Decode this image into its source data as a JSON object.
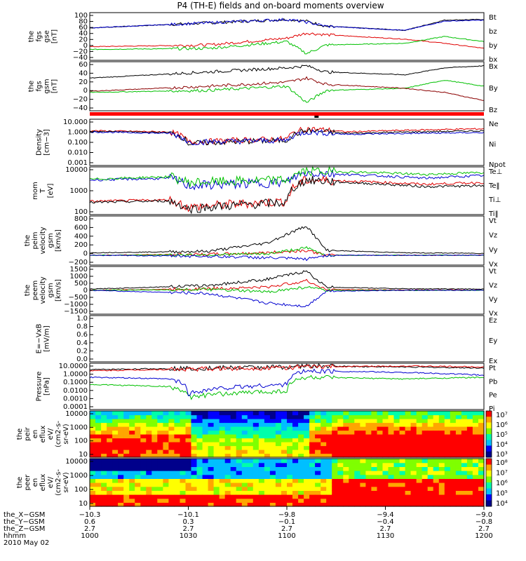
{
  "title": "P4 (TH-E) fields and on-board moments overview",
  "colors": {
    "black": "#000000",
    "red": "#e00000",
    "green": "#00c000",
    "blue": "#0000d0"
  },
  "chart_data": [
    {
      "type": "line",
      "ylabel": [
        "the",
        "fgs",
        "gse",
        "[nT]"
      ],
      "ylim": [
        -40,
        100
      ],
      "ytick_labels": [
        "100",
        "80",
        "60",
        "40",
        "20",
        "0",
        "−20",
        "−40"
      ],
      "legend": [
        {
          "name": "Bt",
          "color": "#000000"
        },
        {
          "name": "bz",
          "color": "#e00000"
        },
        {
          "name": "by",
          "color": "#00c000"
        },
        {
          "name": "bx",
          "color": "#0000d0"
        }
      ],
      "series": [
        {
          "name": "Bt",
          "color": "#000000",
          "t": [
            0,
            0.3,
            0.5,
            0.55,
            0.6,
            0.8,
            0.9,
            1
          ],
          "y": [
            55,
            70,
            80,
            75,
            60,
            48,
            78,
            80
          ]
        },
        {
          "name": "bz",
          "color": "#e00000",
          "t": [
            0,
            0.3,
            0.5,
            0.55,
            0.6,
            0.8,
            0.9,
            1
          ],
          "y": [
            0,
            5,
            25,
            40,
            35,
            22,
            10,
            -5
          ]
        },
        {
          "name": "by",
          "color": "#00c000",
          "t": [
            0,
            0.3,
            0.5,
            0.55,
            0.6,
            0.8,
            0.9,
            1
          ],
          "y": [
            -8,
            -5,
            15,
            -20,
            5,
            10,
            30,
            15
          ]
        },
        {
          "name": "bx",
          "color": "#0000d0",
          "t": [
            0,
            0.3,
            0.5,
            0.55,
            0.6,
            0.8,
            0.9,
            1
          ],
          "y": [
            55,
            70,
            80,
            72,
            60,
            48,
            75,
            78
          ]
        }
      ]
    },
    {
      "type": "line",
      "ylabel": [
        "the",
        "fgs",
        "gsm",
        "[nT]"
      ],
      "ylim": [
        -50,
        70
      ],
      "ytick_labels": [
        "60",
        "40",
        "20",
        "0",
        "−20",
        "−40"
      ],
      "legend": [
        {
          "name": "Bx",
          "color": "#000000"
        },
        {
          "name": "By",
          "color": "#00c000"
        },
        {
          "name": "Bz",
          "color": "#8b0000"
        }
      ],
      "series": [
        {
          "name": "Bx",
          "color": "#000000",
          "t": [
            0,
            0.3,
            0.5,
            0.55,
            0.6,
            0.8,
            0.9,
            1
          ],
          "y": [
            30,
            45,
            55,
            60,
            45,
            38,
            55,
            60
          ]
        },
        {
          "name": "By",
          "color": "#00c000",
          "t": [
            0,
            0.3,
            0.5,
            0.55,
            0.6,
            0.8,
            0.9,
            1
          ],
          "y": [
            -5,
            0,
            10,
            -30,
            0,
            5,
            25,
            10
          ]
        },
        {
          "name": "Bz",
          "color": "#8b0000",
          "t": [
            0,
            0.3,
            0.5,
            0.55,
            0.6,
            0.8,
            0.9,
            1
          ],
          "y": [
            -2,
            10,
            20,
            30,
            15,
            5,
            -5,
            -25
          ]
        }
      ]
    },
    {
      "type": "line",
      "ylabel": [
        "Density",
        "[cm−3]"
      ],
      "ylim": [
        0.001,
        10
      ],
      "log": true,
      "ytick_labels": [
        "10.000",
        "1.000",
        "0.100",
        "0.010",
        "0.001"
      ],
      "legend": [
        {
          "name": "Ne",
          "color": "#e00000"
        },
        {
          "name": "Ni",
          "color": "#000000"
        },
        {
          "name": "Npot",
          "color": "#0000d0"
        }
      ],
      "series": [
        {
          "name": "Ne",
          "color": "#e00000",
          "t": [
            0,
            0.2,
            0.25,
            0.5,
            0.55,
            0.65,
            1
          ],
          "y": [
            1,
            0.8,
            0.1,
            0.2,
            1.5,
            0.8,
            1.5
          ]
        },
        {
          "name": "Ni",
          "color": "#000000",
          "t": [
            0,
            0.2,
            0.25,
            0.5,
            0.55,
            0.65,
            1
          ],
          "y": [
            0.9,
            0.7,
            0.08,
            0.15,
            1,
            0.6,
            1
          ]
        },
        {
          "name": "Npot",
          "color": "#0000d0",
          "t": [
            0,
            0.2,
            0.25,
            0.5,
            0.55,
            0.65,
            1
          ],
          "y": [
            0.8,
            0.6,
            0.1,
            0.15,
            0.8,
            0.5,
            0.7
          ]
        }
      ]
    },
    {
      "type": "line",
      "ylabel": [
        "mom",
        "T",
        "[eV]"
      ],
      "ylim": [
        30,
        10000
      ],
      "log": true,
      "ytick_labels": [
        "10000",
        "1000",
        "100"
      ],
      "legend": [
        {
          "name": "Te⊥",
          "color": "#e00000"
        },
        {
          "name": "Te‖",
          "color": "#000000"
        },
        {
          "name": "Ti⊥",
          "color": "#0000d0"
        },
        {
          "name": "Ti‖",
          "color": "#00c000"
        }
      ],
      "series": [
        {
          "name": "Te⊥",
          "color": "#e00000",
          "t": [
            0,
            0.2,
            0.25,
            0.5,
            0.55,
            0.65,
            0.85,
            1
          ],
          "y": [
            150,
            180,
            70,
            150,
            2000,
            1800,
            1200,
            1500
          ]
        },
        {
          "name": "Te‖",
          "color": "#000000",
          "t": [
            0,
            0.2,
            0.25,
            0.5,
            0.55,
            0.65,
            0.85,
            1
          ],
          "y": [
            130,
            160,
            60,
            130,
            2000,
            1500,
            900,
            1000
          ]
        },
        {
          "name": "Ti⊥",
          "color": "#0000d0",
          "t": [
            0,
            0.2,
            0.25,
            0.5,
            0.55,
            0.65,
            0.85,
            1
          ],
          "y": [
            2000,
            2500,
            1000,
            1500,
            5000,
            4000,
            2500,
            3500
          ]
        },
        {
          "name": "Ti‖",
          "color": "#00c000",
          "t": [
            0,
            0.2,
            0.25,
            0.5,
            0.55,
            0.65,
            0.85,
            1
          ],
          "y": [
            2200,
            3000,
            1500,
            2000,
            6000,
            5500,
            4000,
            5000
          ]
        }
      ]
    },
    {
      "type": "line",
      "ylabel": [
        "the",
        "peim",
        "velocity",
        "gsm",
        "[km/s]"
      ],
      "ylim": [
        -200,
        800
      ],
      "ytick_labels": [
        "800",
        "600",
        "400",
        "200",
        "0",
        "−200"
      ],
      "legend": [
        {
          "name": "Vt",
          "color": "#000000"
        },
        {
          "name": "Vz",
          "color": "#e00000"
        },
        {
          "name": "Vy",
          "color": "#00c000"
        },
        {
          "name": "Vx",
          "color": "#0000d0"
        }
      ],
      "series": [
        {
          "name": "Vt",
          "color": "#000000",
          "t": [
            0,
            0.3,
            0.45,
            0.55,
            0.6,
            0.8,
            1
          ],
          "y": [
            50,
            80,
            250,
            600,
            100,
            50,
            40
          ]
        },
        {
          "name": "Vz",
          "color": "#e00000",
          "t": [
            0,
            0.3,
            0.45,
            0.55,
            0.6,
            0.8,
            1
          ],
          "y": [
            0,
            20,
            50,
            100,
            0,
            0,
            0
          ]
        },
        {
          "name": "Vy",
          "color": "#00c000",
          "t": [
            0,
            0.3,
            0.45,
            0.55,
            0.6,
            0.8,
            1
          ],
          "y": [
            0,
            10,
            30,
            150,
            0,
            0,
            0
          ]
        },
        {
          "name": "Vx",
          "color": "#0000d0",
          "t": [
            0,
            0.3,
            0.45,
            0.55,
            0.6,
            0.8,
            1
          ],
          "y": [
            0,
            -20,
            -50,
            -80,
            0,
            0,
            0
          ]
        }
      ]
    },
    {
      "type": "line",
      "ylabel": [
        "the",
        "peem",
        "velocity",
        "gsm",
        "[km/s]"
      ],
      "ylim": [
        -1500,
        1500
      ],
      "ytick_labels": [
        "1500",
        "1000",
        "500",
        "0",
        "−500",
        "−1000",
        "−1500"
      ],
      "legend": [
        {
          "name": "Vt",
          "color": "#000000"
        },
        {
          "name": "Vz",
          "color": "#e00000"
        },
        {
          "name": "Vy",
          "color": "#00c000"
        },
        {
          "name": "Vx",
          "color": "#0000d0"
        }
      ],
      "series": [
        {
          "name": "Vt",
          "color": "#000000",
          "t": [
            0,
            0.3,
            0.45,
            0.55,
            0.6,
            0.8,
            1
          ],
          "y": [
            80,
            300,
            700,
            1200,
            200,
            100,
            80
          ]
        },
        {
          "name": "Vz",
          "color": "#e00000",
          "t": [
            0,
            0.3,
            0.45,
            0.55,
            0.6,
            0.8,
            1
          ],
          "y": [
            0,
            100,
            200,
            600,
            50,
            20,
            20
          ]
        },
        {
          "name": "Vy",
          "color": "#00c000",
          "t": [
            0,
            0.3,
            0.45,
            0.55,
            0.6,
            0.8,
            1
          ],
          "y": [
            0,
            50,
            -100,
            200,
            0,
            0,
            0
          ]
        },
        {
          "name": "Vx",
          "color": "#0000d0",
          "t": [
            0,
            0.3,
            0.45,
            0.55,
            0.6,
            0.8,
            1
          ],
          "y": [
            0,
            -200,
            -800,
            -1000,
            -50,
            0,
            0
          ]
        }
      ]
    },
    {
      "type": "line",
      "ylabel": [
        "E=−VxB",
        "[mV/m]"
      ],
      "ylim": [
        0,
        1
      ],
      "ytick_labels": [
        "1.0",
        "0.8",
        "0.6",
        "0.4",
        "0.2",
        "0.0"
      ],
      "legend": [
        {
          "name": "Ez",
          "color": "#e00000"
        },
        {
          "name": "Ey",
          "color": "#00c000"
        },
        {
          "name": "Ex",
          "color": "#0000d0"
        }
      ],
      "series": []
    },
    {
      "type": "line",
      "ylabel": [
        "Pressure",
        "[nPa]"
      ],
      "ylim": [
        0.0001,
        10
      ],
      "log": true,
      "ytick_labels": [
        "10.0000",
        "1.0000",
        "0.1000",
        "0.0100",
        "0.0010",
        "0.0001"
      ],
      "legend": [
        {
          "name": "Pt",
          "color": "#000000"
        },
        {
          "name": "Pb",
          "color": "#e00000"
        },
        {
          "name": "Pe",
          "color": "#00c000"
        },
        {
          "name": "Pi",
          "color": "#0000d0"
        }
      ],
      "series": [
        {
          "name": "Pt",
          "color": "#000000",
          "t": [
            0,
            0.3,
            0.5,
            0.55,
            0.8,
            1
          ],
          "y": [
            2,
            3,
            4,
            5,
            4,
            3
          ]
        },
        {
          "name": "Pb",
          "color": "#e00000",
          "t": [
            0,
            0.3,
            0.5,
            0.55,
            0.8,
            1
          ],
          "y": [
            1.5,
            2.5,
            3.5,
            4,
            5,
            4
          ]
        },
        {
          "name": "Pe",
          "color": "#00c000",
          "t": [
            0,
            0.2,
            0.25,
            0.5,
            0.55,
            0.8,
            1
          ],
          "y": [
            0.05,
            0.03,
            0.002,
            0.01,
            0.3,
            0.2,
            0.3
          ]
        },
        {
          "name": "Pi",
          "color": "#0000d0",
          "t": [
            0,
            0.2,
            0.25,
            0.5,
            0.55,
            0.8,
            1
          ],
          "y": [
            0.3,
            0.2,
            0.005,
            0.05,
            1.5,
            1,
            0.5
          ]
        }
      ]
    },
    {
      "type": "heatmap",
      "ylabel": [
        "the",
        "peir",
        "en",
        "eflux",
        "eV/",
        "(cm2-s-",
        "sr-eV)"
      ],
      "ylim": [
        10,
        10000
      ],
      "log": true,
      "ytick_labels": [
        "10000",
        "1000",
        "100",
        "10"
      ],
      "colorbar_labels": [
        "10⁷",
        "10⁶",
        "10⁵",
        "10⁴",
        "10³"
      ]
    },
    {
      "type": "heatmap",
      "ylabel": [
        "the",
        "peer",
        "en",
        "eflux",
        "eV/",
        "(cm2-s-",
        "sr-eV)"
      ],
      "ylim": [
        10,
        10000
      ],
      "log": true,
      "ytick_labels": [
        "10000",
        "1000",
        "100",
        "10"
      ],
      "colorbar_labels": [
        "10⁸",
        "10⁷",
        "10⁶",
        "10⁵",
        "10⁴"
      ]
    }
  ],
  "x_axis": {
    "tick_rows": [
      {
        "label": "the_X−GSM",
        "values": [
          "−10.3",
          "−10.1",
          "−9.8",
          "−9.4",
          "−9.0"
        ]
      },
      {
        "label": "the_Y−GSM",
        "values": [
          "0.6",
          "0.3",
          "−0.1",
          "−0.4",
          "−0.8"
        ]
      },
      {
        "label": "the_Z−GSM",
        "values": [
          "2.7",
          "2.7",
          "2.7",
          "2.7",
          "2.7"
        ]
      },
      {
        "label": "hhmm",
        "values": [
          "1000",
          "1030",
          "1100",
          "1130",
          "1200"
        ]
      }
    ],
    "date": "2010 May 02"
  }
}
